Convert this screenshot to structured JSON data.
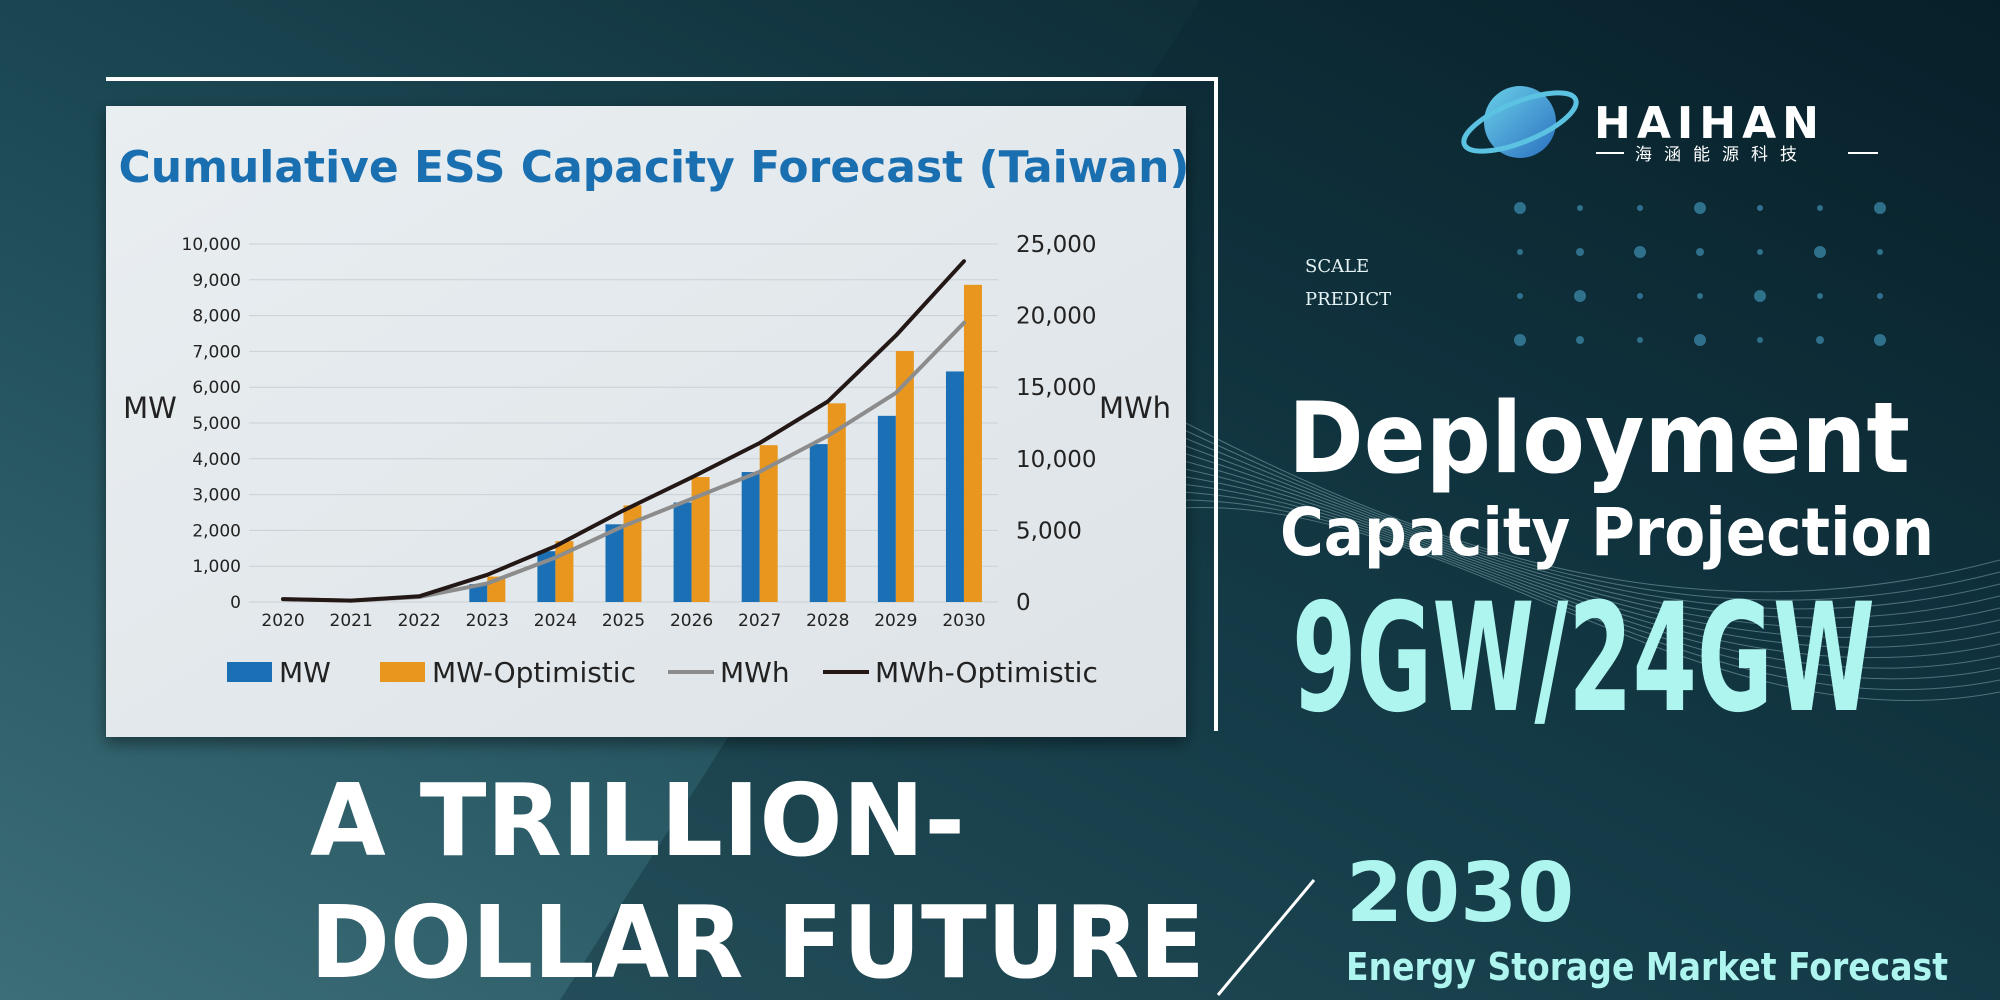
{
  "chart_data": {
    "type": "bar",
    "title": "Cumulative ESS Capacity Forecast (Taiwan)",
    "y_label": "MW",
    "y2_label": "MWh",
    "categories": [
      "2020",
      "2021",
      "2022",
      "2023",
      "2024",
      "2025",
      "2026",
      "2027",
      "2028",
      "2029",
      "2030"
    ],
    "series": [
      {
        "name": "MW",
        "type": "bar",
        "color": "#1a6fb5",
        "values": [
          0,
          0,
          0,
          500,
          1420,
          2170,
          2780,
          3630,
          4410,
          5200,
          6440
        ]
      },
      {
        "name": "MW-Optimistic",
        "type": "bar",
        "color": "#e8961e",
        "values": [
          0,
          0,
          0,
          710,
          1700,
          2700,
          3490,
          4380,
          5550,
          7010,
          8860
        ]
      },
      {
        "name": "MWh",
        "type": "line",
        "axis": "y2",
        "color": "#8c8c8c",
        "values": [
          200,
          100,
          350,
          1300,
          3100,
          5300,
          7200,
          9100,
          11600,
          14600,
          19500
        ]
      },
      {
        "name": "MWh-Optimistic",
        "type": "line",
        "axis": "y2",
        "color": "#231815",
        "values": [
          200,
          100,
          400,
          1900,
          3900,
          6400,
          8700,
          11100,
          14000,
          18600,
          23800
        ]
      }
    ],
    "ylim": [
      0,
      10000
    ],
    "yticks": [
      0,
      {
        "value": 1000,
        "label": "1,000"
      },
      {
        "value": 2000,
        "label": "2,000"
      },
      {
        "value": 3000,
        "label": "3,000"
      },
      {
        "value": 4000,
        "label": "4,000"
      },
      {
        "value": 5000,
        "label": "5,000"
      },
      {
        "value": 6000,
        "label": "6,000"
      },
      {
        "value": 7000,
        "label": "7,000"
      },
      {
        "value": 8000,
        "label": "8,000"
      },
      {
        "value": 9000,
        "label": "9,000"
      },
      {
        "value": 10000,
        "label": "10,000"
      }
    ],
    "y2lim": [
      0,
      25000
    ],
    "y2ticks": [
      0,
      {
        "value": 5000,
        "label": "5,000"
      },
      {
        "value": 10000,
        "label": "10,000"
      },
      {
        "value": 15000,
        "label": "15,000"
      },
      {
        "value": 20000,
        "label": "20,000"
      },
      {
        "value": 25000,
        "label": "25,000"
      }
    ],
    "grid": true,
    "legend": "bottom"
  },
  "banner": {
    "brand": "HAIHAN",
    "brand_subtitle": "海涵能源科技",
    "tag_1": "SCALE",
    "tag_2": "PREDICT",
    "heading": "Deployment",
    "subheading": "Capacity Projection",
    "highlight": "9GW/24GW",
    "slogan_1": "A TRILLION-",
    "slogan_2": "DOLLAR FUTURE",
    "year": "2030",
    "caption": "Energy Storage Market Forecast"
  }
}
